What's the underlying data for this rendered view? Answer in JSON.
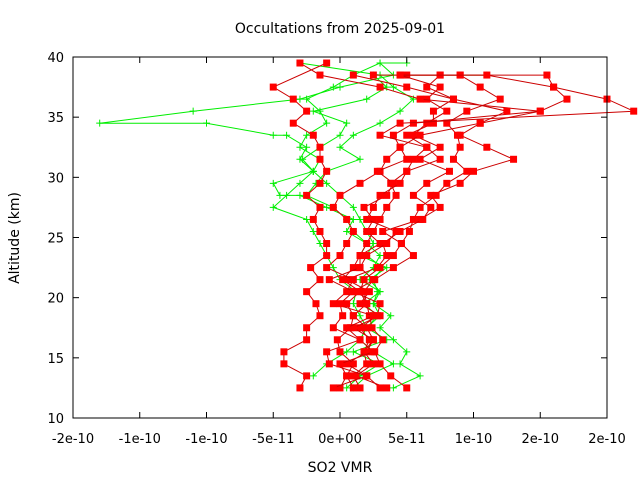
{
  "chart_data": {
    "type": "line",
    "title": "Occultations from 2025-09-01",
    "xlabel": "SO2 VMR",
    "ylabel": "Altitude (km)",
    "xlim": [
      -2e-10,
      2e-10
    ],
    "ylim": [
      10,
      40
    ],
    "x_ticks": [
      -2e-10,
      -1.5e-10,
      -1e-10,
      -5e-11,
      0,
      5e-11,
      1e-10,
      1.5e-10,
      2e-10
    ],
    "x_tick_labels": [
      "-2e-10",
      "-1e-10",
      "-1e-10",
      "-5e-11",
      "0e+00",
      "5e-11",
      "1e-10",
      "2e-10",
      "2e-10"
    ],
    "y_ticks": [
      10,
      15,
      20,
      25,
      30,
      35,
      40
    ],
    "y_tick_labels": [
      "10",
      "15",
      "20",
      "25",
      "30",
      "35",
      "40"
    ],
    "grid": false,
    "colors": {
      "series_a": "#ff0000",
      "series_a_line": "#cc0000",
      "series_b": "#00ee00"
    },
    "series": [
      {
        "marker": "square",
        "color": "#ff0000",
        "x": [
          3.5e-11,
          1.2e-11,
          2.5e-11,
          1.8e-11,
          2.2e-11,
          1.5e-11,
          2.8e-11,
          3e-11,
          1e-11,
          2.6e-11,
          4e-11,
          5.5e-11,
          4.6e-11,
          3.2e-11,
          6e-11,
          7.5e-11,
          6.8e-11,
          9e-11,
          1e-10,
          1.3e-10,
          1.1e-10,
          9e-11,
          1.05e-10,
          1.5e-10,
          1.7e-10,
          1.6e-10,
          1.55e-10,
          9e-11,
          5e-11
        ],
        "y": [
          12.5,
          13.5,
          14.5,
          15.5,
          16.5,
          17.5,
          18.5,
          19.5,
          20.5,
          21.5,
          22.5,
          23.5,
          24.5,
          25.5,
          26.5,
          27.5,
          28.5,
          29.5,
          30.5,
          31.5,
          32.5,
          33.5,
          34.5,
          35.5,
          36.5,
          37.5,
          38.5,
          38.5,
          38.5
        ]
      },
      {
        "marker": "square",
        "color": "#ff0000",
        "x": [
          5e-11,
          3.8e-11,
          3e-11,
          2.6e-11,
          3.2e-11,
          2.4e-11,
          2.2e-11,
          2e-11,
          1.5e-11,
          1.8e-11,
          3e-11,
          4e-11,
          4.6e-11,
          5.2e-11,
          5.5e-11,
          6e-11,
          7.2e-11,
          8e-11,
          9.5e-11,
          8.5e-11,
          9e-11,
          8.8e-11,
          8e-11,
          9.5e-11,
          1.2e-10,
          1.05e-10,
          9e-11,
          7.5e-11
        ],
        "y": [
          12.5,
          13.5,
          14.5,
          15.5,
          16.5,
          17.5,
          18.5,
          19.5,
          20.5,
          21.5,
          22.5,
          23.5,
          24.5,
          25.5,
          26.5,
          27.5,
          28.5,
          29.5,
          30.5,
          31.5,
          32.5,
          33.5,
          34.5,
          35.5,
          36.5,
          37.5,
          38.5,
          38.5
        ]
      },
      {
        "marker": "square",
        "color": "#ff0000",
        "x": [
          -3e-11,
          -2.5e-11,
          -4.2e-11,
          -4.2e-11,
          -2.5e-11,
          -2.5e-11,
          -1.5e-11,
          -1.8e-11,
          -2.5e-11,
          -1.5e-11,
          -2.2e-11,
          -1e-11,
          -1e-11,
          -1.5e-11,
          -2e-11,
          -1.5e-11,
          -2.5e-11,
          -1.5e-11,
          -1e-11,
          -1.5e-11,
          -1.5e-11,
          -2e-11,
          -3.5e-11,
          -2.5e-11,
          -3.5e-11,
          -5e-11,
          -1e-11
        ],
        "y": [
          12.5,
          13.5,
          14.5,
          15.5,
          16.5,
          17.5,
          18.5,
          19.5,
          20.5,
          21.5,
          22.5,
          23.5,
          24.5,
          25.5,
          26.5,
          27.5,
          28.5,
          29.5,
          30.5,
          31.5,
          32.5,
          33.5,
          34.5,
          35.5,
          36.5,
          37.5,
          39.5
        ]
      },
      {
        "marker": "square",
        "color": "#ff0000",
        "x": [
          0,
          5e-12,
          1e-11,
          0,
          -2e-12,
          8e-12,
          1e-11,
          5e-12,
          1.5e-11,
          2e-12,
          1e-11,
          1.5e-11,
          2e-11,
          2.5e-11,
          3e-11,
          3.5e-11,
          4.2e-11,
          3.8e-11,
          5e-11,
          5.5e-11,
          6.5e-11,
          5e-11,
          7e-11,
          7e-11,
          8.5e-11,
          6.5e-11,
          7.5e-11,
          2.5e-11
        ],
        "y": [
          12.5,
          13.5,
          14.5,
          15.5,
          16.5,
          17.5,
          18.5,
          19.5,
          20.5,
          21.5,
          22.5,
          23.5,
          24.5,
          25.5,
          26.5,
          27.5,
          28.5,
          29.5,
          30.5,
          31.5,
          32.5,
          33.5,
          34.5,
          35.5,
          36.5,
          37.5,
          38.5,
          38.5
        ]
      },
      {
        "marker": "square",
        "color": "#ff0000",
        "x": [
          1.5e-11,
          1e-11,
          2e-11,
          1.8e-11,
          2.5e-11,
          1e-11,
          3e-11,
          1.5e-11,
          2.2e-11,
          5e-12,
          2.8e-11,
          3.5e-11,
          3.2e-11,
          4.5e-11,
          6.2e-11,
          6.8e-11,
          5.5e-11,
          6.5e-11,
          8.2e-11,
          6e-11,
          7.5e-11,
          5.5e-11,
          6.5e-11,
          8e-11,
          6.5e-11,
          7.5e-11,
          4.5e-11
        ],
        "y": [
          12.5,
          13.5,
          14.5,
          15.5,
          16.5,
          17.5,
          18.5,
          19.5,
          20.5,
          21.5,
          22.5,
          23.5,
          24.5,
          25.5,
          26.5,
          27.5,
          28.5,
          29.5,
          30.5,
          31.5,
          32.5,
          33.5,
          34.5,
          35.5,
          36.5,
          37.5,
          38.5
        ]
      },
      {
        "marker": "square",
        "color": "#ff0000",
        "x": [
          3e-11,
          2e-11,
          -8e-12,
          -1e-11,
          1.5e-11,
          5e-12,
          2.5e-11,
          -5e-12,
          5e-12,
          1e-11,
          -1e-11,
          0,
          5e-12,
          1e-11,
          5e-12,
          -5e-12,
          0,
          1.5e-11,
          3e-11,
          3.5e-11,
          4.5e-11,
          4e-11,
          5.5e-11,
          1.5e-10,
          6e-11,
          3e-11,
          -1.5e-11,
          -3e-11
        ],
        "y": [
          12.5,
          13.5,
          14.5,
          15.5,
          16.5,
          17.5,
          18.5,
          19.5,
          20.5,
          21.5,
          22.5,
          23.5,
          24.5,
          25.5,
          26.5,
          27.5,
          28.5,
          29.5,
          30.5,
          31.5,
          32.5,
          33.5,
          34.5,
          35.5,
          36.5,
          37.5,
          38.5,
          39.5
        ]
      },
      {
        "marker": "square",
        "color": "#ff0000",
        "x": [
          -5e-12,
          2e-11,
          5e-12,
          2e-11,
          2.5e-11,
          2e-11,
          1e-11,
          2e-11,
          1.8e-11,
          2.5e-11,
          1.5e-11,
          1.5e-11,
          3e-11,
          2e-11,
          2.5e-11,
          1.8e-11,
          3.5e-11,
          4e-11,
          2.8e-11,
          5e-11,
          4.5e-11,
          6e-11,
          1.05e-10,
          1.25e-10,
          8.5e-11,
          5e-11,
          1e-11
        ],
        "y": [
          12.5,
          13.5,
          14.5,
          15.5,
          16.5,
          17.5,
          18.5,
          19.5,
          20.5,
          21.5,
          22.5,
          23.5,
          24.5,
          25.5,
          26.5,
          27.5,
          28.5,
          29.5,
          30.5,
          31.5,
          32.5,
          33.5,
          34.5,
          35.5,
          36.5,
          37.5,
          38.5
        ]
      },
      {
        "marker": "square",
        "color": "#ff0000",
        "x": [
          1e-11,
          5e-12,
          0,
          2.5e-11,
          1.5e-11,
          -5e-12,
          2e-12,
          0,
          1e-11,
          -8e-12,
          1.5e-11,
          2e-11,
          3.5e-11,
          4.2e-11,
          2e-11,
          2.5e-11,
          3e-11,
          4.5e-11,
          5e-11,
          7.5e-11,
          6.5e-11,
          3e-11,
          4.5e-11,
          2.2e-10,
          2e-10,
          1.6e-10,
          1.1e-10,
          4.5e-11
        ],
        "y": [
          12.5,
          13.5,
          14.5,
          15.5,
          16.5,
          17.5,
          18.5,
          19.5,
          20.5,
          21.5,
          22.5,
          23.5,
          24.5,
          25.5,
          26.5,
          27.5,
          28.5,
          29.5,
          30.5,
          31.5,
          32.5,
          33.5,
          34.5,
          35.5,
          36.5,
          37.5,
          38.5,
          38.5
        ]
      },
      {
        "marker": "plus",
        "color": "#00ee00",
        "x": [
          -2e-11,
          -1e-11,
          5e-12,
          1.5e-11,
          2e-11,
          3e-11,
          2.5e-11,
          2.8e-11,
          2.5e-11,
          3.2e-11,
          2e-11,
          2.5e-11,
          2e-11,
          1.5e-11,
          1e-11,
          0,
          -1e-11,
          -2e-11,
          -3e-11,
          -2.5e-11,
          -4e-11,
          -5e-11,
          -1e-10,
          -1.8e-10,
          -1.1e-10,
          -3e-11,
          0,
          4e-11,
          3e-11
        ],
        "y": [
          13.5,
          14.5,
          15.5,
          16.5,
          17.5,
          18.5,
          19.5,
          20.5,
          21.5,
          22.5,
          23.5,
          24.5,
          25.5,
          26.5,
          27.5,
          28.5,
          29.5,
          30.5,
          31.5,
          32.5,
          33.5,
          33.5,
          34.5,
          34.5,
          35.5,
          36.5,
          37.5,
          38.5,
          39.5
        ]
      },
      {
        "marker": "plus",
        "color": "#00ee00",
        "x": [
          1e-11,
          2e-11,
          4e-11,
          2.5e-11,
          1.5e-11,
          2e-11,
          1.5e-11,
          1e-11,
          1.2e-11,
          0,
          -5e-12,
          -1e-11,
          -1.5e-11,
          -2e-11,
          -2.5e-11,
          -5e-11,
          -4e-11,
          -3e-11,
          -2e-11,
          -1.5e-11,
          -3e-11,
          -2.5e-11,
          -1e-11,
          -1.5e-11,
          -2.5e-11,
          -5e-12,
          1e-11,
          3e-11,
          5e-11
        ],
        "y": [
          12.5,
          13.5,
          14.5,
          15.5,
          16.5,
          17.5,
          18.5,
          19.5,
          20.5,
          21.5,
          22.5,
          23.5,
          24.5,
          25.5,
          26.5,
          27.5,
          28.5,
          29.5,
          30.5,
          31.5,
          32.5,
          33.5,
          34.5,
          35.5,
          36.5,
          37.5,
          38.5,
          39.5,
          39.5
        ]
      },
      {
        "marker": "plus",
        "color": "#00ee00",
        "x": [
          5e-12,
          1.5e-11,
          3e-11,
          1e-11,
          3.5e-11,
          2e-11,
          2.8e-11,
          1.8e-11,
          3e-11,
          2.2e-11,
          3.5e-11,
          1.5e-11,
          2e-11,
          5e-12,
          1e-11,
          -1e-11,
          -3e-11,
          -4.5e-11,
          -5e-11,
          -2e-11,
          -2.8e-11,
          -1.5e-11,
          0,
          5e-12,
          -2e-11,
          2e-11,
          3.5e-11,
          2.5e-11,
          1.1e-10
        ],
        "y": [
          12.5,
          13.5,
          14.5,
          15.5,
          16.5,
          17.5,
          18.5,
          19.5,
          20.5,
          21.5,
          22.5,
          23.5,
          24.5,
          25.5,
          26.5,
          27.5,
          28.5,
          28.5,
          29.5,
          30.5,
          31.5,
          32.5,
          33.5,
          34.5,
          35.5,
          36.5,
          37.5,
          38.5,
          38.5
        ]
      },
      {
        "marker": "plus",
        "color": "#00ee00",
        "x": [
          4e-11,
          6e-11,
          4.5e-11,
          5e-11,
          4e-11,
          3e-11,
          3.8e-11,
          2.5e-11,
          3e-11,
          1.5e-11,
          2.5e-11,
          3e-11,
          2e-11,
          1e-11,
          5e-12,
          -5e-12,
          -2.5e-11,
          -1.8e-11,
          -1e-11,
          1.5e-11,
          0,
          1e-11,
          3e-11,
          4.5e-11,
          5.5e-11,
          4e-11,
          3e-11,
          -3e-11
        ],
        "y": [
          12.5,
          13.5,
          14.5,
          15.5,
          16.5,
          17.5,
          18.5,
          19.5,
          20.5,
          21.5,
          22.5,
          23.5,
          24.5,
          25.5,
          26.5,
          27.5,
          28.5,
          29.5,
          30.5,
          31.5,
          32.5,
          33.5,
          34.5,
          35.5,
          36.5,
          37.5,
          38.5,
          39.5
        ]
      }
    ]
  }
}
